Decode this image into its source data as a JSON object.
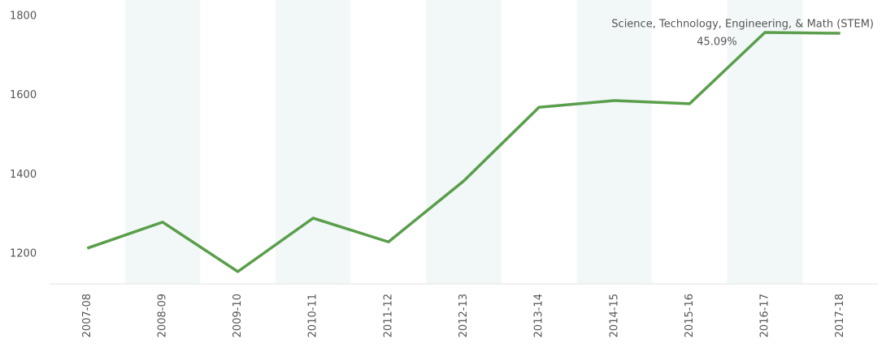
{
  "chart_data": {
    "type": "line",
    "categories": [
      "2007-08",
      "2008-09",
      "2009-10",
      "2010-11",
      "2011-12",
      "2012-13",
      "2013-14",
      "2014-15",
      "2015-16",
      "2016-17",
      "2017-18"
    ],
    "series": [
      {
        "name": "Science, Technology, Engineering, & Math (STEM)",
        "color": "#5a9e4b",
        "values": [
          1214,
          1280,
          1155,
          1290,
          1230,
          1384,
          1570,
          1587,
          1579,
          1759,
          1757
        ]
      }
    ],
    "annotation": {
      "label": "Science, Technology, Engineering, & Math (STEM)",
      "value": "45.09%"
    },
    "ylim": [
      1124,
      1841
    ],
    "yticks": [
      1200,
      1400,
      1600,
      1800
    ],
    "grid": false
  }
}
